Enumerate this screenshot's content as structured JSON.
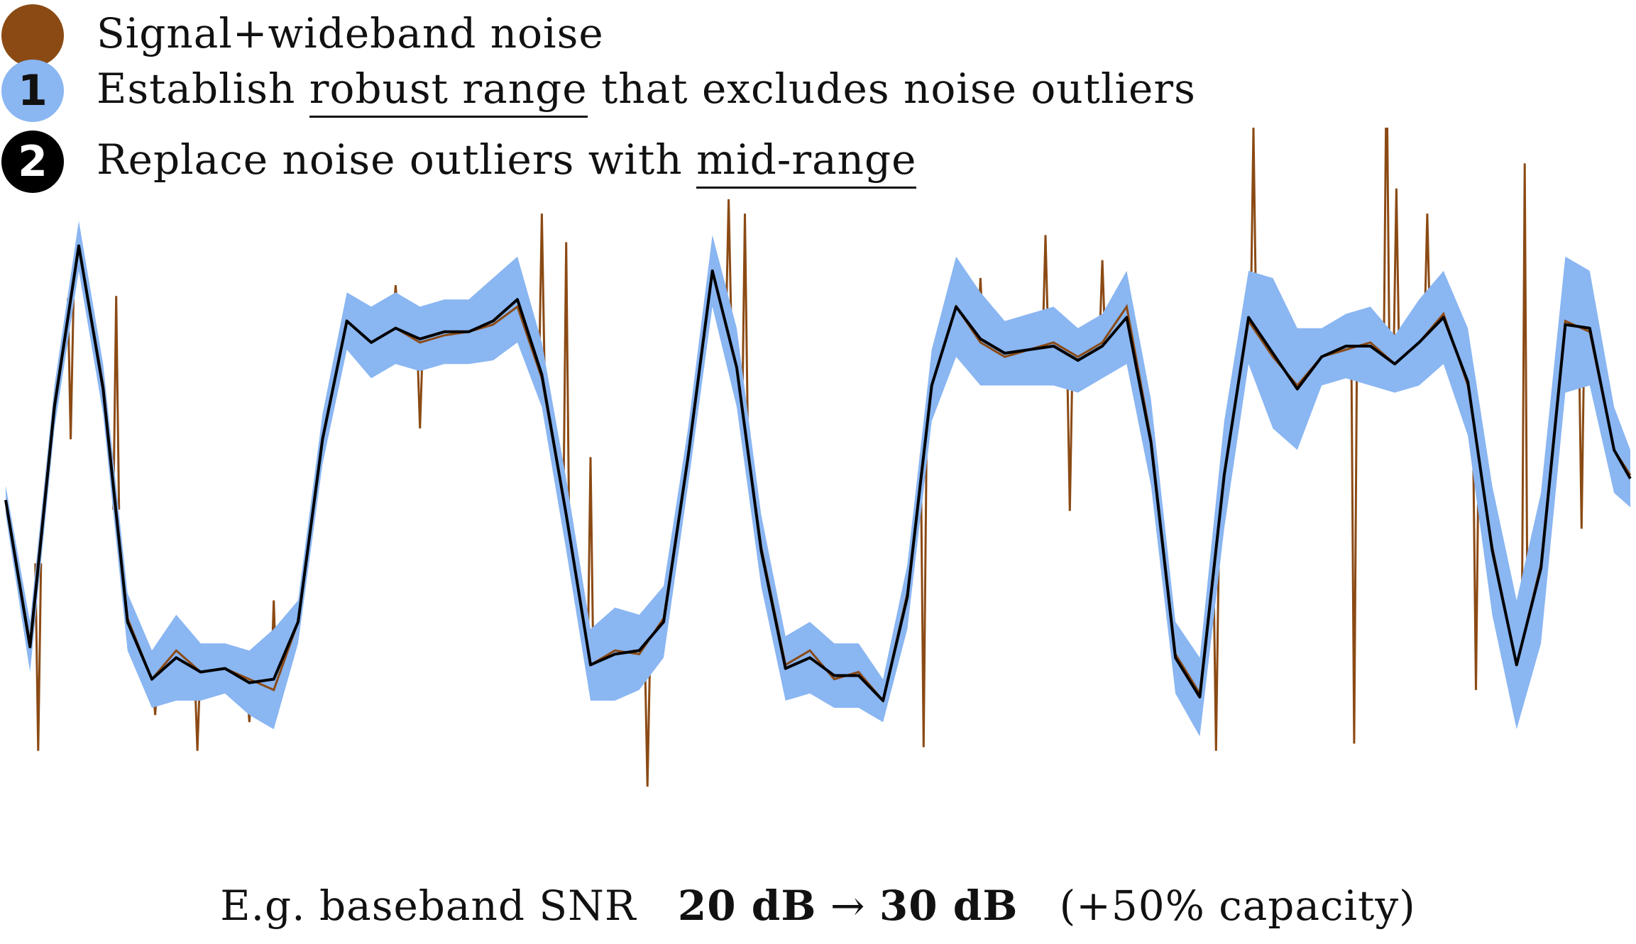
{
  "legend": {
    "row1": {
      "marker": "",
      "text": "Signal+wideband noise"
    },
    "row2": {
      "marker": "1",
      "text_pre": "Establish ",
      "text_ul": "robust range",
      "text_post": " that excludes noise outliers"
    },
    "row3": {
      "marker": "2",
      "text_pre": "Replace noise outliers with ",
      "text_ul": "mid-range",
      "text_post": ""
    }
  },
  "caption": {
    "prefix": "E.g. baseband SNR",
    "snr_before": "20 dB",
    "arrow": "→",
    "snr_after": "30 dB",
    "note": "(+50% capacity)"
  },
  "colors": {
    "noisy": "#8B4A14",
    "range": "#8AB6F2",
    "midrange": "#000000"
  },
  "chart_data": {
    "type": "line",
    "title": "",
    "xlabel": "",
    "ylabel": "",
    "axes_visible": false,
    "grid": false,
    "xlim": [
      0,
      1000
    ],
    "ylim": [
      -1,
      1
    ],
    "x": [
      0,
      15,
      30,
      45,
      60,
      75,
      90,
      105,
      120,
      135,
      150,
      165,
      180,
      195,
      210,
      225,
      240,
      255,
      270,
      285,
      300,
      315,
      330,
      345,
      360,
      375,
      390,
      405,
      420,
      435,
      450,
      465,
      480,
      495,
      510,
      525,
      540,
      555,
      570,
      585,
      600,
      615,
      630,
      645,
      660,
      675,
      690,
      705,
      720,
      735,
      750,
      765,
      780,
      795,
      810,
      825,
      840,
      855,
      870,
      885,
      900,
      915,
      930,
      945,
      960,
      975,
      990,
      1000
    ],
    "series": [
      {
        "role": "signal_plus_noise",
        "values": [
          -0.02,
          -0.42,
          0.25,
          0.69,
          0.3,
          -0.35,
          -0.52,
          -0.44,
          -0.5,
          -0.49,
          -0.52,
          -0.55,
          -0.36,
          0.15,
          0.48,
          0.42,
          0.46,
          0.42,
          0.44,
          0.45,
          0.47,
          0.52,
          0.32,
          -0.06,
          -0.48,
          -0.44,
          -0.45,
          -0.35,
          0.1,
          0.62,
          0.35,
          -0.15,
          -0.48,
          -0.44,
          -0.52,
          -0.5,
          -0.58,
          -0.28,
          0.3,
          0.52,
          0.42,
          0.38,
          0.4,
          0.42,
          0.38,
          0.42,
          0.52,
          0.15,
          -0.45,
          -0.56,
          0.05,
          0.48,
          0.38,
          0.3,
          0.38,
          0.4,
          0.42,
          0.36,
          0.42,
          0.5,
          0.3,
          -0.15,
          -0.48,
          -0.2,
          0.48,
          0.45,
          0.12,
          0.05
        ]
      },
      {
        "role": "robust_range_low",
        "values": [
          -0.06,
          -0.5,
          0.18,
          0.62,
          0.22,
          -0.44,
          -0.6,
          -0.58,
          -0.58,
          -0.56,
          -0.62,
          -0.66,
          -0.42,
          0.08,
          0.4,
          0.32,
          0.36,
          0.34,
          0.36,
          0.36,
          0.37,
          0.42,
          0.24,
          -0.16,
          -0.58,
          -0.58,
          -0.55,
          -0.46,
          0.02,
          0.52,
          0.24,
          -0.26,
          -0.58,
          -0.56,
          -0.6,
          -0.6,
          -0.64,
          -0.38,
          0.2,
          0.38,
          0.3,
          0.3,
          0.3,
          0.3,
          0.28,
          0.32,
          0.36,
          0.02,
          -0.56,
          -0.68,
          -0.1,
          0.36,
          0.18,
          0.12,
          0.3,
          0.32,
          0.3,
          0.28,
          0.3,
          0.36,
          0.16,
          -0.34,
          -0.66,
          -0.42,
          0.28,
          0.3,
          0.0,
          -0.04
        ]
      },
      {
        "role": "robust_range_high",
        "values": [
          0.02,
          -0.36,
          0.3,
          0.76,
          0.36,
          -0.28,
          -0.44,
          -0.34,
          -0.42,
          -0.42,
          -0.44,
          -0.38,
          -0.3,
          0.22,
          0.56,
          0.52,
          0.56,
          0.52,
          0.54,
          0.54,
          0.6,
          0.66,
          0.42,
          0.04,
          -0.38,
          -0.32,
          -0.34,
          -0.26,
          0.18,
          0.72,
          0.46,
          -0.06,
          -0.4,
          -0.36,
          -0.42,
          -0.42,
          -0.52,
          -0.2,
          0.4,
          0.66,
          0.56,
          0.48,
          0.5,
          0.52,
          0.46,
          0.5,
          0.62,
          0.26,
          -0.36,
          -0.46,
          0.2,
          0.62,
          0.6,
          0.46,
          0.46,
          0.5,
          0.52,
          0.44,
          0.54,
          0.62,
          0.46,
          0.02,
          -0.3,
          0.0,
          0.66,
          0.62,
          0.24,
          0.12
        ]
      },
      {
        "role": "mid_range",
        "values": [
          -0.02,
          -0.43,
          0.24,
          0.69,
          0.29,
          -0.36,
          -0.52,
          -0.46,
          -0.5,
          -0.49,
          -0.53,
          -0.52,
          -0.36,
          0.15,
          0.48,
          0.42,
          0.46,
          0.43,
          0.45,
          0.45,
          0.48,
          0.54,
          0.33,
          -0.06,
          -0.48,
          -0.45,
          -0.44,
          -0.36,
          0.1,
          0.62,
          0.35,
          -0.16,
          -0.49,
          -0.46,
          -0.51,
          -0.51,
          -0.58,
          -0.29,
          0.3,
          0.52,
          0.43,
          0.39,
          0.4,
          0.41,
          0.37,
          0.41,
          0.49,
          0.14,
          -0.46,
          -0.57,
          0.05,
          0.49,
          0.39,
          0.29,
          0.38,
          0.41,
          0.41,
          0.36,
          0.42,
          0.49,
          0.31,
          -0.16,
          -0.48,
          -0.21,
          0.47,
          0.46,
          0.12,
          0.04
        ]
      }
    ],
    "outlier_spikes": [
      {
        "x": 20,
        "y": -0.72
      },
      {
        "x": 40,
        "y": 0.15
      },
      {
        "x": 68,
        "y": 0.55
      },
      {
        "x": 92,
        "y": -0.62
      },
      {
        "x": 118,
        "y": -0.72
      },
      {
        "x": 150,
        "y": -0.64
      },
      {
        "x": 165,
        "y": -0.3
      },
      {
        "x": 240,
        "y": 0.58
      },
      {
        "x": 255,
        "y": 0.18
      },
      {
        "x": 290,
        "y": 0.55
      },
      {
        "x": 330,
        "y": 0.78
      },
      {
        "x": 345,
        "y": 0.7
      },
      {
        "x": 360,
        "y": 0.1
      },
      {
        "x": 395,
        "y": -0.82
      },
      {
        "x": 445,
        "y": 0.82
      },
      {
        "x": 455,
        "y": 0.78
      },
      {
        "x": 530,
        "y": -0.58
      },
      {
        "x": 565,
        "y": -0.71
      },
      {
        "x": 600,
        "y": 0.6
      },
      {
        "x": 640,
        "y": 0.72
      },
      {
        "x": 655,
        "y": -0.05
      },
      {
        "x": 675,
        "y": 0.65
      },
      {
        "x": 710,
        "y": -0.1
      },
      {
        "x": 745,
        "y": -0.72
      },
      {
        "x": 768,
        "y": 1.02
      },
      {
        "x": 783,
        "y": 0.55
      },
      {
        "x": 830,
        "y": -0.7
      },
      {
        "x": 850,
        "y": 1.22
      },
      {
        "x": 856,
        "y": 0.85
      },
      {
        "x": 875,
        "y": 0.78
      },
      {
        "x": 905,
        "y": -0.55
      },
      {
        "x": 935,
        "y": 0.92
      },
      {
        "x": 960,
        "y": 0.45
      },
      {
        "x": 970,
        "y": -0.1
      }
    ]
  }
}
